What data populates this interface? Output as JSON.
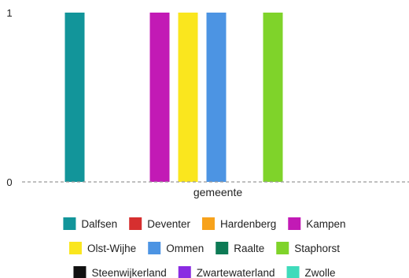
{
  "chart_data": {
    "type": "bar",
    "title": "",
    "xlabel": "gemeente",
    "ylabel": "",
    "ylim": [
      0,
      1
    ],
    "y_ticks": [
      0,
      1
    ],
    "grid": false,
    "legend_position": "bottom",
    "series": [
      {
        "name": "Dalfsen",
        "value": 1,
        "color": "#12959a"
      },
      {
        "name": "Deventer",
        "value": 0,
        "color": "#d62f2f"
      },
      {
        "name": "Hardenberg",
        "value": 0,
        "color": "#f7a21b"
      },
      {
        "name": "Kampen",
        "value": 1,
        "color": "#c21ab5"
      },
      {
        "name": "Olst-Wijhe",
        "value": 1,
        "color": "#fae61e"
      },
      {
        "name": "Ommen",
        "value": 1,
        "color": "#4c94e3"
      },
      {
        "name": "Raalte",
        "value": 0,
        "color": "#0d7a55"
      },
      {
        "name": "Staphorst",
        "value": 1,
        "color": "#7fd32a"
      },
      {
        "name": "Steenwijkerland",
        "value": 0,
        "color": "#111111"
      },
      {
        "name": "Zwartewaterland",
        "value": 0,
        "color": "#8a2be2"
      },
      {
        "name": "Zwolle",
        "value": 0,
        "color": "#3fdbbb"
      }
    ]
  }
}
